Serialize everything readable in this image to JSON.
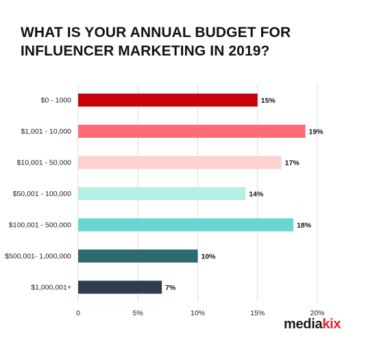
{
  "chart_data": {
    "type": "bar",
    "orientation": "horizontal",
    "title": "WHAT IS YOUR ANNUAL BUDGET FOR INFLUENCER MARKETING IN 2019?",
    "categories": [
      "$0 - 1000",
      "$1,001 - 10,000",
      "$10,001 - 50,000",
      "$50,001 - 100,000",
      "$100,001 - 500,000",
      "$500,001- 1,000,000",
      "$1,000,001+"
    ],
    "values": [
      15,
      19,
      17,
      14,
      18,
      10,
      7
    ],
    "data_labels": [
      "15%",
      "19%",
      "17%",
      "14%",
      "18%",
      "10%",
      "7%"
    ],
    "colors": [
      "#c8000b",
      "#ff6b78",
      "#fdd1cf",
      "#b6f0e3",
      "#6ad6d3",
      "#2d6b6c",
      "#2e3e4d"
    ],
    "xlim": [
      0,
      20
    ],
    "xticks": [
      0,
      5,
      10,
      15,
      20
    ],
    "xtick_labels": [
      "0",
      "5%",
      "10%",
      "15%",
      "20%"
    ],
    "grid": "vertical",
    "xlabel": "",
    "ylabel": ""
  },
  "logo": {
    "part1": "media",
    "part2": "kix"
  }
}
